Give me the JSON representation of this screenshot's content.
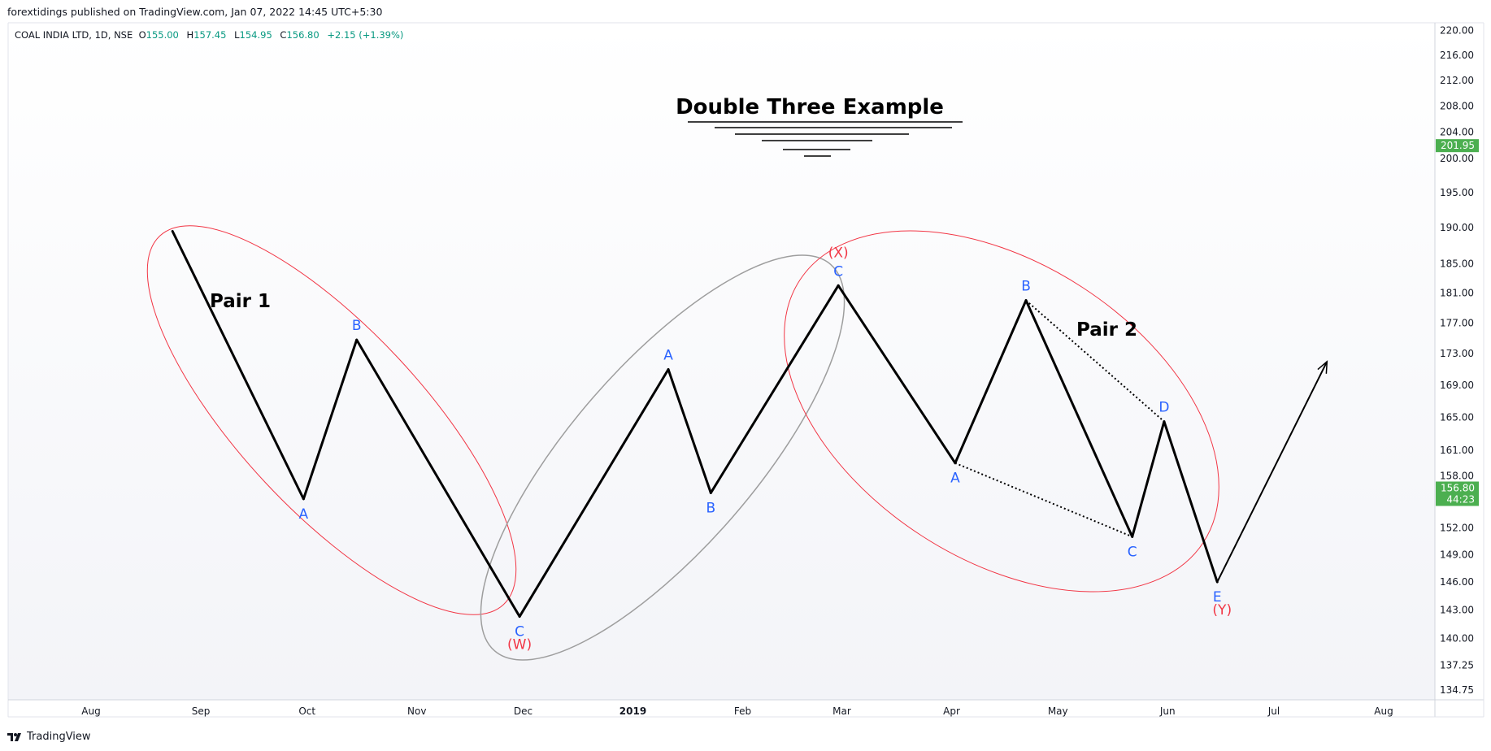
{
  "header": {
    "published_line": "forextidings published on TradingView.com, Jan 07, 2022 14:45 UTC+5:30"
  },
  "legend": {
    "symbol": "COAL INDIA LTD, 1D, NSE",
    "open_label": "O",
    "open": "155.00",
    "high_label": "H",
    "high": "157.45",
    "low_label": "L",
    "low": "154.95",
    "close_label": "C",
    "close": "156.80",
    "change": "+2.15 (+1.39%)"
  },
  "footer": {
    "brand": "TradingView"
  },
  "colors": {
    "wave": "#000000",
    "ellipse_red": "#f23645",
    "ellipse_gray": "#9e9e9e",
    "blue_label": "#2962ff",
    "red_label": "#f23645",
    "price_badge": "#4caf50"
  },
  "chart_data": {
    "type": "line",
    "title": "Double Three Example",
    "xlabel": "",
    "ylabel": "",
    "x_ticks": [
      {
        "label": "Aug",
        "date": "2018-08-01"
      },
      {
        "label": "Sep",
        "date": "2018-09-01"
      },
      {
        "label": "Oct",
        "date": "2018-10-01"
      },
      {
        "label": "Nov",
        "date": "2018-11-01"
      },
      {
        "label": "Dec",
        "date": "2018-12-01"
      },
      {
        "label": "2019",
        "date": "2019-01-01",
        "bold": true
      },
      {
        "label": "Feb",
        "date": "2019-02-01"
      },
      {
        "label": "Mar",
        "date": "2019-03-01"
      },
      {
        "label": "Apr",
        "date": "2019-04-01"
      },
      {
        "label": "May",
        "date": "2019-05-01"
      },
      {
        "label": "Jun",
        "date": "2019-06-01"
      },
      {
        "label": "Jul",
        "date": "2019-07-01"
      },
      {
        "label": "Aug",
        "date": "2019-08-01"
      }
    ],
    "y_ticks": [
      "134.75",
      "137.25",
      "140.00",
      "143.00",
      "146.00",
      "149.00",
      "152.00",
      "155.00",
      "158.00",
      "161.00",
      "165.00",
      "169.00",
      "173.00",
      "177.00",
      "181.00",
      "185.00",
      "190.00",
      "195.00",
      "200.00",
      "204.00",
      "208.00",
      "212.00",
      "216.00",
      "220.00"
    ],
    "ylim": [
      134.0,
      221.0
    ],
    "y_scale": "log",
    "series": [
      {
        "points": [
          {
            "date": "2018-08-24",
            "y": 189.5,
            "label": ""
          },
          {
            "date": "2018-09-30",
            "y": 155.3,
            "label": "A",
            "pos": "below",
            "color": "blue"
          },
          {
            "date": "2018-10-15",
            "y": 174.8,
            "label": "B",
            "pos": "above",
            "color": "blue"
          },
          {
            "date": "2018-11-30",
            "y": 142.3,
            "label": "C",
            "label2": "(W)",
            "pos": "below",
            "color": "blue"
          },
          {
            "date": "2019-01-11",
            "y": 171.0,
            "label": "A",
            "pos": "above",
            "color": "blue"
          },
          {
            "date": "2019-01-23",
            "y": 156.0,
            "label": "B",
            "pos": "below",
            "color": "blue"
          },
          {
            "date": "2019-02-28",
            "y": 182.0,
            "label": "C",
            "label2": "(X)",
            "pos": "above",
            "color": "blue"
          },
          {
            "date": "2019-04-02",
            "y": 159.5,
            "label": "A",
            "pos": "below",
            "color": "blue"
          },
          {
            "date": "2019-04-22",
            "y": 180.0,
            "label": "B",
            "pos": "above",
            "color": "blue"
          },
          {
            "date": "2019-05-22",
            "y": 151.0,
            "label": "C",
            "pos": "below",
            "color": "blue"
          },
          {
            "date": "2019-05-31",
            "y": 164.5,
            "label": "D",
            "pos": "above",
            "color": "blue"
          },
          {
            "date": "2019-06-15",
            "y": 146.0,
            "label": "E",
            "label2": "(Y)",
            "pos": "below",
            "color": "blue"
          }
        ]
      }
    ],
    "arrow": {
      "from": {
        "date": "2019-06-15",
        "y": 146.0
      },
      "to": {
        "date": "2019-07-16",
        "y": 172.0
      }
    },
    "dotted_lines": [
      {
        "from": {
          "date": "2019-04-02",
          "y": 159.5
        },
        "to": {
          "date": "2019-05-22",
          "y": 151.0
        }
      },
      {
        "from": {
          "date": "2019-04-22",
          "y": 180.0
        },
        "to": {
          "date": "2019-05-31",
          "y": 164.5
        }
      }
    ],
    "annotations": [
      "Pair 1",
      "Pair 2"
    ],
    "price_badges": [
      {
        "value": "201.95",
        "y": 201.95
      },
      {
        "value": "156.80",
        "sub": "44:23",
        "y": 155.9
      }
    ],
    "grid": false
  }
}
